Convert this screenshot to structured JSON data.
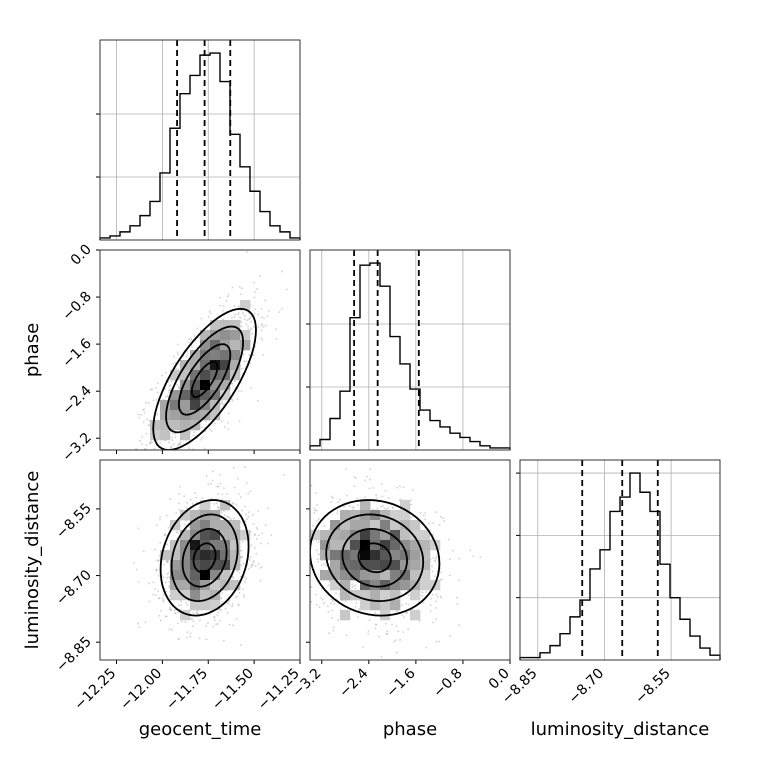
{
  "chart_data": {
    "type": "corner",
    "parameters": [
      "geocent_time",
      "phase",
      "luminosity_distance"
    ],
    "ranges": {
      "geocent_time": [
        -12.34,
        -11.25
      ],
      "phase": [
        -3.4,
        0.0
      ],
      "luminosity_distance": [
        -8.89,
        -8.44
      ]
    },
    "ticks": {
      "geocent_time": [
        -12.25,
        -12.0,
        -11.75,
        -11.5,
        -11.25
      ],
      "phase": [
        -3.2,
        -2.4,
        -1.6,
        -0.8,
        0.0
      ],
      "luminosity_distance": [
        -8.85,
        -8.7,
        -8.55
      ]
    },
    "tick_labels": {
      "geocent_time": [
        "−12.25",
        "−12.00",
        "−11.75",
        "−11.50",
        "−11.25"
      ],
      "phase": [
        "−3.2",
        "−2.4",
        "−1.6",
        "−0.8",
        "0.0"
      ],
      "luminosity_distance": [
        "−8.85",
        "−8.70",
        "−8.55"
      ]
    },
    "quantiles": {
      "geocent_time": [
        -11.92,
        -11.77,
        -11.63
      ],
      "phase": [
        -2.65,
        -2.25,
        -1.55
      ],
      "luminosity_distance": [
        -8.75,
        -8.66,
        -8.58
      ]
    },
    "hist": {
      "geocent_time": [
        1,
        2,
        4,
        7,
        12,
        19,
        33,
        55,
        72,
        81,
        91,
        92,
        78,
        52,
        36,
        24,
        14,
        7,
        4,
        1
      ],
      "phase": [
        2,
        5,
        15,
        28,
        63,
        88,
        89,
        78,
        54,
        41,
        29,
        19,
        14,
        11,
        8,
        6,
        4,
        2,
        1,
        1
      ],
      "luminosity_distance": [
        1,
        1,
        3,
        6,
        11,
        18,
        25,
        38,
        46,
        62,
        68,
        78,
        70,
        62,
        40,
        26,
        17,
        10,
        5,
        2
      ]
    },
    "pairs": [
      {
        "x": "geocent_time",
        "y": "phase",
        "mean": [
          -11.77,
          -2.2
        ],
        "sigma": [
          0.14,
          0.6
        ],
        "rho": 0.7
      },
      {
        "x": "geocent_time",
        "y": "luminosity_distance",
        "mean": [
          -11.77,
          -8.66
        ],
        "sigma": [
          0.12,
          0.065
        ],
        "rho": 0.2
      },
      {
        "x": "phase",
        "y": "luminosity_distance",
        "mean": [
          -2.3,
          -8.66
        ],
        "sigma": [
          0.55,
          0.065
        ],
        "rho": -0.1
      }
    ],
    "grid": true
  }
}
